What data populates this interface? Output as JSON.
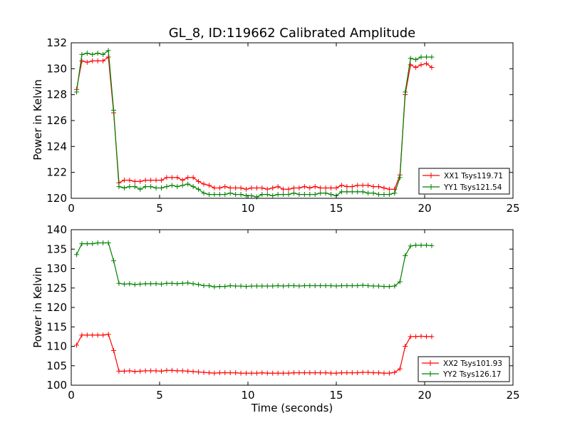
{
  "chart_data": [
    {
      "type": "line",
      "title": "GL_8, ID:119662 Calibrated Amplitude",
      "xlabel": "",
      "ylabel": "Power in Kelvin",
      "xlim": [
        0,
        25
      ],
      "ylim": [
        120,
        132
      ],
      "xticks": [
        "0",
        "5",
        "10",
        "15",
        "20",
        "25"
      ],
      "yticks": [
        "120",
        "122",
        "124",
        "126",
        "128",
        "130",
        "132"
      ],
      "grid": false,
      "legend_position": "lower-right",
      "series": [
        {
          "name": "XX1 Tsys119.71",
          "color": "#ff0000",
          "x": [
            0.3,
            0.6,
            0.9,
            1.2,
            1.5,
            1.8,
            2.1,
            2.4,
            2.7,
            3.0,
            3.3,
            3.6,
            3.9,
            4.2,
            4.5,
            4.8,
            5.1,
            5.4,
            5.7,
            6.0,
            6.3,
            6.6,
            6.9,
            7.2,
            7.5,
            7.8,
            8.1,
            8.4,
            8.7,
            9.0,
            9.3,
            9.6,
            9.9,
            10.2,
            10.5,
            10.8,
            11.1,
            11.4,
            11.7,
            12.0,
            12.3,
            12.6,
            12.9,
            13.2,
            13.5,
            13.8,
            14.1,
            14.4,
            14.7,
            15.0,
            15.3,
            15.6,
            15.9,
            16.2,
            16.5,
            16.8,
            17.1,
            17.4,
            17.7,
            18.0,
            18.3,
            18.6,
            18.9,
            19.2,
            19.5,
            19.8,
            20.1,
            20.4
          ],
          "y": [
            128.4,
            130.6,
            130.5,
            130.6,
            130.6,
            130.6,
            130.9,
            126.6,
            121.2,
            121.4,
            121.4,
            121.3,
            121.3,
            121.4,
            121.4,
            121.4,
            121.4,
            121.6,
            121.6,
            121.6,
            121.4,
            121.6,
            121.6,
            121.3,
            121.1,
            121.0,
            120.8,
            120.8,
            120.9,
            120.8,
            120.8,
            120.8,
            120.7,
            120.8,
            120.8,
            120.8,
            120.7,
            120.8,
            120.9,
            120.7,
            120.7,
            120.8,
            120.8,
            120.9,
            120.8,
            120.9,
            120.8,
            120.8,
            120.8,
            120.8,
            121.0,
            120.9,
            120.9,
            121.0,
            121.0,
            121.0,
            120.9,
            120.9,
            120.8,
            120.7,
            120.7,
            121.8,
            128.0,
            130.3,
            130.1,
            130.3,
            130.4,
            130.1
          ]
        },
        {
          "name": "YY1 Tsys121.54",
          "color": "#008000",
          "x": [
            0.3,
            0.6,
            0.9,
            1.2,
            1.5,
            1.8,
            2.1,
            2.4,
            2.7,
            3.0,
            3.3,
            3.6,
            3.9,
            4.2,
            4.5,
            4.8,
            5.1,
            5.4,
            5.7,
            6.0,
            6.3,
            6.6,
            6.9,
            7.2,
            7.5,
            7.8,
            8.1,
            8.4,
            8.7,
            9.0,
            9.3,
            9.6,
            9.9,
            10.2,
            10.5,
            10.8,
            11.1,
            11.4,
            11.7,
            12.0,
            12.3,
            12.6,
            12.9,
            13.2,
            13.5,
            13.8,
            14.1,
            14.4,
            14.7,
            15.0,
            15.3,
            15.6,
            15.9,
            16.2,
            16.5,
            16.8,
            17.1,
            17.4,
            17.7,
            18.0,
            18.3,
            18.6,
            18.9,
            19.2,
            19.5,
            19.8,
            20.1,
            20.4
          ],
          "y": [
            128.2,
            131.1,
            131.2,
            131.1,
            131.2,
            131.1,
            131.4,
            126.8,
            120.9,
            120.8,
            120.9,
            120.9,
            120.7,
            120.9,
            120.9,
            120.8,
            120.8,
            120.9,
            121.0,
            120.9,
            121.0,
            121.1,
            120.9,
            120.7,
            120.4,
            120.3,
            120.3,
            120.3,
            120.3,
            120.4,
            120.3,
            120.3,
            120.2,
            120.2,
            120.1,
            120.3,
            120.3,
            120.2,
            120.3,
            120.3,
            120.3,
            120.4,
            120.3,
            120.3,
            120.3,
            120.3,
            120.4,
            120.4,
            120.3,
            120.2,
            120.5,
            120.5,
            120.5,
            120.5,
            120.5,
            120.4,
            120.4,
            120.3,
            120.3,
            120.3,
            120.4,
            121.6,
            128.2,
            130.8,
            130.7,
            130.9,
            130.9,
            130.9
          ]
        }
      ]
    },
    {
      "type": "line",
      "title": "",
      "xlabel": "Time (seconds)",
      "ylabel": "Power in Kelvin",
      "xlim": [
        0,
        25
      ],
      "ylim": [
        100,
        140
      ],
      "xticks": [
        "0",
        "5",
        "10",
        "15",
        "20",
        "25"
      ],
      "yticks": [
        "100",
        "105",
        "110",
        "115",
        "120",
        "125",
        "130",
        "135",
        "140"
      ],
      "grid": false,
      "legend_position": "lower-right",
      "series": [
        {
          "name": "XX2 Tsys101.93",
          "color": "#ff0000",
          "x": [
            0.3,
            0.6,
            0.9,
            1.2,
            1.5,
            1.8,
            2.1,
            2.4,
            2.7,
            3.0,
            3.3,
            3.6,
            3.9,
            4.2,
            4.5,
            4.8,
            5.1,
            5.4,
            5.7,
            6.0,
            6.3,
            6.6,
            6.9,
            7.2,
            7.5,
            7.8,
            8.1,
            8.4,
            8.7,
            9.0,
            9.3,
            9.6,
            9.9,
            10.2,
            10.5,
            10.8,
            11.1,
            11.4,
            11.7,
            12.0,
            12.3,
            12.6,
            12.9,
            13.2,
            13.5,
            13.8,
            14.1,
            14.4,
            14.7,
            15.0,
            15.3,
            15.6,
            15.9,
            16.2,
            16.5,
            16.8,
            17.1,
            17.4,
            17.7,
            18.0,
            18.3,
            18.6,
            18.9,
            19.2,
            19.5,
            19.8,
            20.1,
            20.4
          ],
          "y": [
            110.3,
            112.9,
            112.9,
            112.9,
            112.9,
            112.9,
            113.1,
            108.9,
            103.6,
            103.6,
            103.7,
            103.5,
            103.6,
            103.7,
            103.7,
            103.7,
            103.6,
            103.8,
            103.8,
            103.7,
            103.7,
            103.6,
            103.5,
            103.4,
            103.3,
            103.2,
            103.1,
            103.2,
            103.2,
            103.2,
            103.2,
            103.1,
            103.1,
            103.1,
            103.1,
            103.2,
            103.1,
            103.1,
            103.1,
            103.1,
            103.1,
            103.2,
            103.2,
            103.2,
            103.2,
            103.2,
            103.2,
            103.2,
            103.1,
            103.1,
            103.2,
            103.2,
            103.2,
            103.2,
            103.3,
            103.3,
            103.2,
            103.2,
            103.1,
            103.1,
            103.3,
            104.2,
            110.0,
            112.5,
            112.5,
            112.6,
            112.5,
            112.5
          ]
        },
        {
          "name": "YY2 Tsys126.17",
          "color": "#008000",
          "x": [
            0.3,
            0.6,
            0.9,
            1.2,
            1.5,
            1.8,
            2.1,
            2.4,
            2.7,
            3.0,
            3.3,
            3.6,
            3.9,
            4.2,
            4.5,
            4.8,
            5.1,
            5.4,
            5.7,
            6.0,
            6.3,
            6.6,
            6.9,
            7.2,
            7.5,
            7.8,
            8.1,
            8.4,
            8.7,
            9.0,
            9.3,
            9.6,
            9.9,
            10.2,
            10.5,
            10.8,
            11.1,
            11.4,
            11.7,
            12.0,
            12.3,
            12.6,
            12.9,
            13.2,
            13.5,
            13.8,
            14.1,
            14.4,
            14.7,
            15.0,
            15.3,
            15.6,
            15.9,
            16.2,
            16.5,
            16.8,
            17.1,
            17.4,
            17.7,
            18.0,
            18.3,
            18.6,
            18.9,
            19.2,
            19.5,
            19.8,
            20.1,
            20.4
          ],
          "y": [
            133.6,
            136.4,
            136.4,
            136.4,
            136.6,
            136.6,
            136.6,
            132.0,
            126.2,
            126.0,
            126.1,
            125.9,
            126.0,
            126.1,
            126.1,
            126.1,
            126.0,
            126.2,
            126.2,
            126.1,
            126.2,
            126.3,
            126.1,
            125.9,
            125.6,
            125.6,
            125.3,
            125.4,
            125.4,
            125.6,
            125.5,
            125.5,
            125.4,
            125.5,
            125.5,
            125.5,
            125.5,
            125.5,
            125.6,
            125.5,
            125.6,
            125.6,
            125.5,
            125.6,
            125.6,
            125.6,
            125.6,
            125.6,
            125.6,
            125.5,
            125.6,
            125.6,
            125.6,
            125.6,
            125.7,
            125.6,
            125.5,
            125.5,
            125.4,
            125.4,
            125.5,
            126.6,
            133.3,
            135.8,
            136.0,
            136.0,
            136.0,
            135.9
          ]
        }
      ]
    }
  ]
}
